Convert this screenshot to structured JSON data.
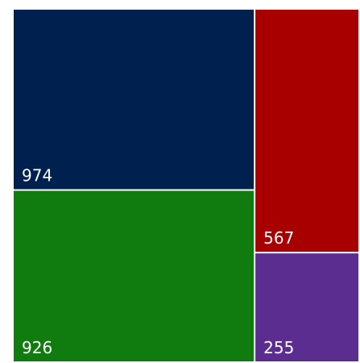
{
  "chart_data": {
    "type": "treemap",
    "values": [
      974,
      926,
      567,
      255
    ],
    "colors": [
      "#002050",
      "#107c10",
      "#a80000",
      "#5c2d91"
    ]
  }
}
